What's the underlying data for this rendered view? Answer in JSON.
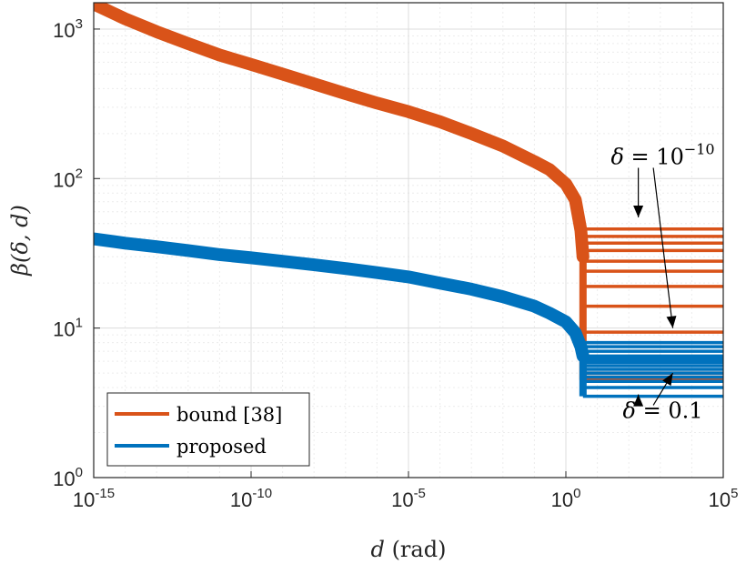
{
  "chart_data": {
    "type": "line",
    "xscale": "log",
    "yscale": "log",
    "xlim": [
      1e-15,
      100000
    ],
    "ylim": [
      1,
      1500
    ],
    "xlabel": {
      "var": "d",
      "unit": "(rad)"
    },
    "ylabel": "β(δ, d)",
    "grid": true,
    "minor_grid": true,
    "legend_position": "bottom-left",
    "xticks": [
      {
        "value": 1e-15,
        "base": "10",
        "exp": "-15"
      },
      {
        "value": 1e-10,
        "base": "10",
        "exp": "-10"
      },
      {
        "value": 1e-05,
        "base": "10",
        "exp": "-5"
      },
      {
        "value": 1,
        "base": "10",
        "exp": "0"
      },
      {
        "value": 100000,
        "base": "10",
        "exp": "5"
      }
    ],
    "yticks": [
      {
        "value": 1,
        "base": "10",
        "exp": "0"
      },
      {
        "value": 10,
        "base": "10",
        "exp": "1"
      },
      {
        "value": 100,
        "base": "10",
        "exp": "2"
      },
      {
        "value": 1000,
        "base": "10",
        "exp": "3"
      }
    ],
    "series": [
      {
        "name": "bound [38]",
        "color": "#D95319",
        "curve_x": [
          1e-15,
          1e-14,
          1e-13,
          1e-12,
          1e-11,
          1e-10,
          1e-09,
          1e-08,
          1e-07,
          1e-06,
          1e-05,
          0.0001,
          0.001,
          0.01,
          0.1,
          0.3,
          1,
          2,
          3,
          3.5
        ],
        "curve_y": [
          1470,
          1170,
          960,
          800,
          670,
          580,
          500,
          430,
          370,
          320,
          280,
          240,
          200,
          165,
          130,
          115,
          92,
          72,
          45,
          30
        ],
        "plateau_x_start": 3.5,
        "plateau_levels": [
          46,
          41,
          37,
          33,
          28,
          24,
          19,
          14,
          9.4,
          5.0,
          4.7,
          4.5
        ]
      },
      {
        "name": "proposed",
        "color": "#0072BD",
        "curve_x": [
          1e-15,
          1e-14,
          1e-13,
          1e-12,
          1e-11,
          1e-10,
          1e-09,
          1e-08,
          1e-07,
          1e-06,
          1e-05,
          0.0001,
          0.001,
          0.01,
          0.1,
          0.3,
          1,
          2,
          3,
          3.5
        ],
        "curve_y": [
          39.5,
          37,
          35,
          33,
          31,
          29.5,
          28,
          26.5,
          25,
          23.5,
          22,
          20,
          18.2,
          16.2,
          14,
          12.6,
          11,
          9.3,
          7.5,
          6.5
        ],
        "plateau_x_start": 3.5,
        "plateau_levels": [
          8.0,
          7.5,
          7.0,
          6.5,
          6.2,
          5.9,
          5.6,
          5.3,
          5.0,
          4.7,
          4.4,
          4.0,
          3.5
        ]
      }
    ],
    "annotations": [
      {
        "id": "top",
        "delta": "δ",
        "op": "=",
        "base": "10",
        "exp": "−10",
        "text_x": 1200,
        "text_y": 140
      },
      {
        "id": "bottom",
        "delta": "δ",
        "op": "=",
        "value": "0.1",
        "text_x": 1200,
        "text_y": 2.8
      }
    ],
    "arrows": [
      {
        "from": [
          200,
          118
        ],
        "to": [
          200,
          55
        ]
      },
      {
        "from": [
          600,
          118
        ],
        "to": [
          2500,
          10.0
        ]
      },
      {
        "from": [
          200,
          3.05
        ],
        "to": [
          200,
          3.6
        ]
      },
      {
        "from": [
          600,
          3.05
        ],
        "to": [
          2500,
          5.0
        ]
      }
    ]
  }
}
